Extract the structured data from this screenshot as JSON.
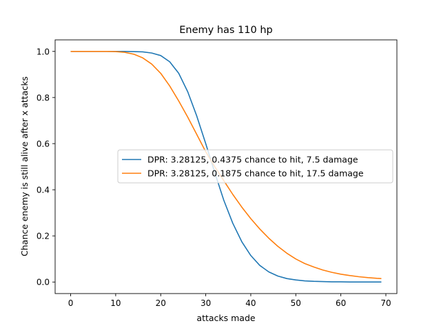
{
  "chart_data": {
    "type": "line",
    "title": "Enemy has 110 hp",
    "xlabel": "attacks made",
    "ylabel": "Chance enemy is still alive after x attacks",
    "xlim": [
      -3.45,
      72.45
    ],
    "ylim": [
      -0.05,
      1.05
    ],
    "xticks": [
      0,
      10,
      20,
      30,
      40,
      50,
      60,
      70
    ],
    "yticks": [
      0.0,
      0.2,
      0.4,
      0.6,
      0.8,
      1.0
    ],
    "ytick_labels": [
      "0.0",
      "0.2",
      "0.4",
      "0.6",
      "0.8",
      "1.0"
    ],
    "grid": false,
    "legend_placement": "center-right",
    "x": [
      0,
      2,
      4,
      6,
      8,
      10,
      12,
      14,
      16,
      18,
      20,
      22,
      24,
      26,
      28,
      30,
      32,
      34,
      36,
      38,
      40,
      42,
      44,
      46,
      48,
      50,
      52,
      54,
      56,
      58,
      60,
      62,
      64,
      66,
      68,
      69
    ],
    "series": [
      {
        "name": "DPR: 3.28125, 0.4375 chance to hit, 7.5 damage",
        "color": "#1f77b4",
        "values": [
          1.0,
          1.0,
          1.0,
          1.0,
          1.0,
          1.0,
          1.0,
          0.999,
          0.998,
          0.993,
          0.982,
          0.955,
          0.905,
          0.825,
          0.72,
          0.6,
          0.475,
          0.355,
          0.255,
          0.175,
          0.115,
          0.072,
          0.044,
          0.026,
          0.015,
          0.009,
          0.005,
          0.003,
          0.002,
          0.001,
          0.001,
          0.0,
          0.0,
          0.0,
          0.0,
          0.0
        ]
      },
      {
        "name": "DPR: 3.28125, 0.1875 chance to hit, 17.5 damage",
        "color": "#ff7f0e",
        "values": [
          1.0,
          1.0,
          1.0,
          1.0,
          1.0,
          0.999,
          0.996,
          0.988,
          0.972,
          0.945,
          0.905,
          0.85,
          0.785,
          0.715,
          0.64,
          0.565,
          0.5,
          0.44,
          0.38,
          0.325,
          0.275,
          0.23,
          0.19,
          0.155,
          0.125,
          0.1,
          0.08,
          0.065,
          0.052,
          0.042,
          0.034,
          0.028,
          0.023,
          0.019,
          0.016,
          0.015
        ]
      }
    ]
  }
}
